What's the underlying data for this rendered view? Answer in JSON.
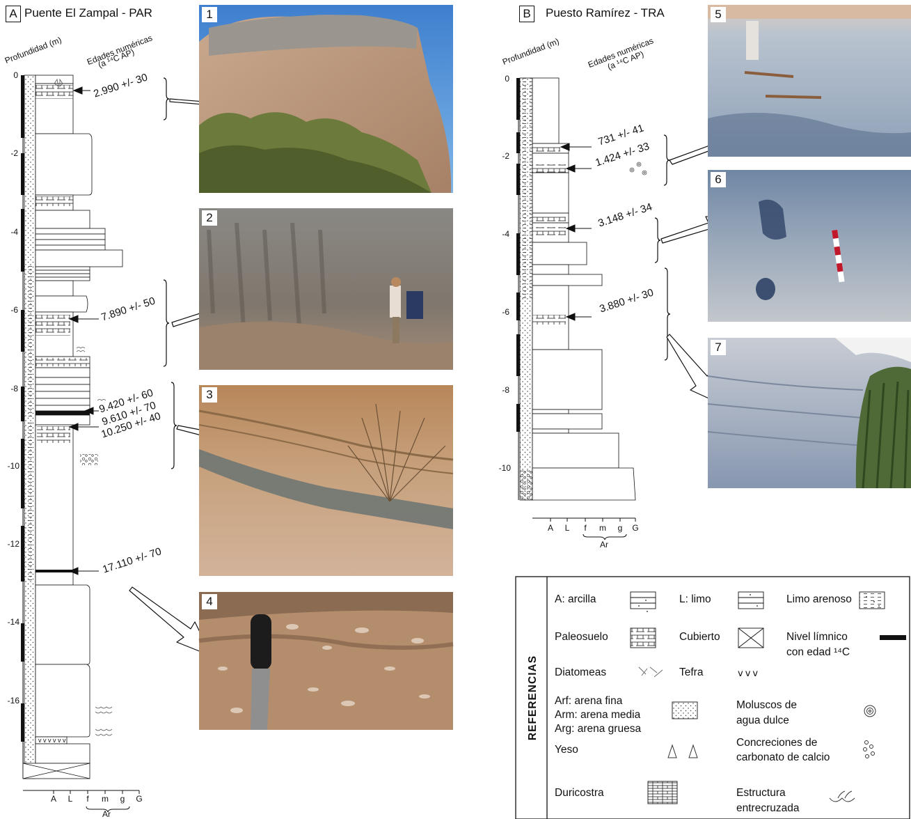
{
  "panel_a": {
    "letter": "A",
    "title": "Puente El Zampal - PAR",
    "depth_axis_label": "Profundidad (m)",
    "ages_label_1": "Edades numéricas",
    "ages_label_2": "(a ¹⁴C AP)",
    "depth_ticks": [
      "0",
      "-2",
      "-4",
      "-6",
      "-8",
      "-10",
      "-12",
      "-14",
      "-16"
    ],
    "dates": [
      "2.990 +/- 30",
      "7.890 +/- 50",
      "9.420 +/- 60",
      "9.610 +/- 70",
      "10.250 +/- 40",
      "17.110 +/- 70"
    ],
    "grain_labels": [
      "A",
      "L",
      "f",
      "m",
      "g",
      "G"
    ],
    "grain_group": "Ar"
  },
  "panel_b": {
    "letter": "B",
    "title": "Puesto Ramírez - TRA",
    "depth_axis_label": "Profundidad (m)",
    "ages_label_1": "Edades numéricas",
    "ages_label_2": "(a ¹⁴C AP)",
    "depth_ticks": [
      "0",
      "-2",
      "-4",
      "-6",
      "-8",
      "-10"
    ],
    "dates": [
      "731 +/- 41",
      "1.424 +/- 33",
      "3.148 +/- 34",
      "3.880 +/- 30"
    ],
    "grain_labels": [
      "A",
      "L",
      "f",
      "m",
      "g",
      "G"
    ],
    "grain_group": "Ar"
  },
  "photos": [
    "1",
    "2",
    "3",
    "4",
    "5",
    "6",
    "7"
  ],
  "references": {
    "title": "REFERENCIAS",
    "arcilla": "A: arcilla",
    "limo": "L: limo",
    "limo_arenoso": "Limo arenoso",
    "paleosuelo": "Paleosuelo",
    "cubierto": "Cubierto",
    "nivel_1": "Nivel límnico",
    "nivel_2": "con edad ¹⁴C",
    "diatomeas": "Diatomeas",
    "tefra": "Tefra",
    "arf": "Arf: arena fina",
    "arm": "Arm: arena media",
    "arg": "Arg: arena gruesa",
    "moluscos_1": "Moluscos de",
    "moluscos_2": "agua dulce",
    "yeso": "Yeso",
    "concreciones_1": "Concreciones de",
    "concreciones_2": "carbonato de calcio",
    "duricostra": "Duricostra",
    "estructura_1": "Estructura",
    "estructura_2": "entrecruzada"
  }
}
